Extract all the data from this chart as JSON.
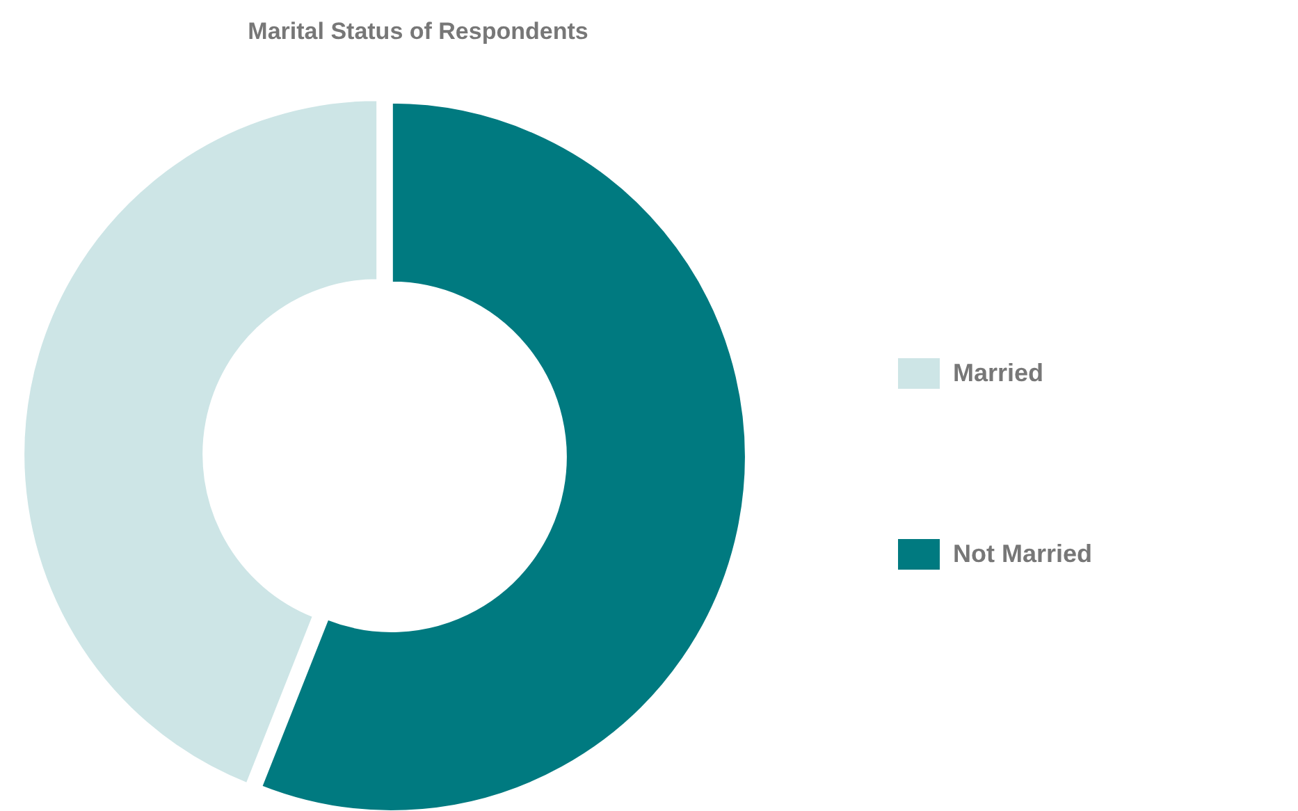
{
  "chart_data": {
    "type": "donut",
    "title": "Marital Status of Respondents",
    "categories": [
      "Married",
      "Not Married"
    ],
    "values": [
      44,
      56
    ],
    "colors": [
      "#cde5e6",
      "#007a80"
    ],
    "legend": "right"
  }
}
